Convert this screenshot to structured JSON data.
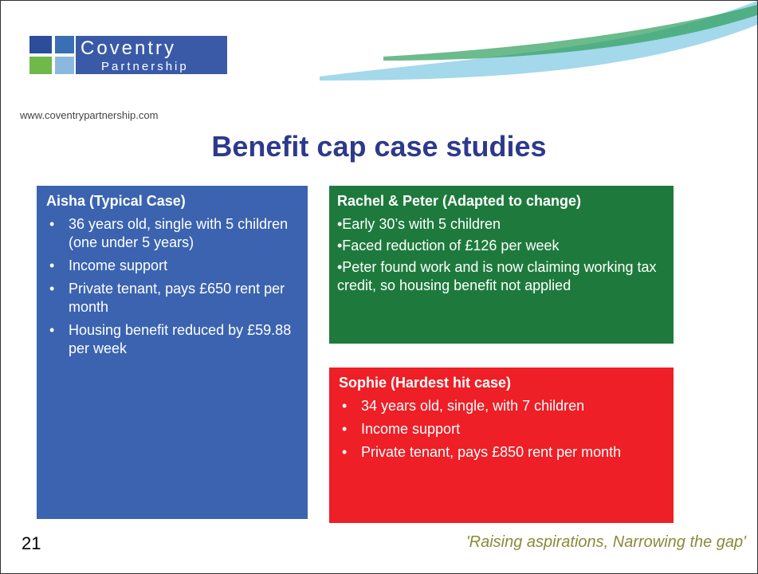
{
  "logo": {
    "name": "Coventry",
    "sub": "Partnership",
    "url": "www.coventrypartnership.com"
  },
  "title": "Benefit cap case studies",
  "boxes": [
    {
      "heading": "Aisha (Typical Case)",
      "items": [
        "36 years old, single with 5 children (one under 5 years)",
        "Income support",
        "Private tenant, pays £650 rent per month",
        "Housing benefit reduced by £59.88 per week"
      ]
    },
    {
      "heading": "Rachel & Peter (Adapted to change)",
      "items": [
        "•Early 30’s with 5 children",
        "•Faced reduction of £126 per week",
        "•Peter found work and is now claiming working tax credit, so housing benefit not applied"
      ]
    },
    {
      "heading": "Sophie (Hardest hit case)",
      "items": [
        "34 years old, single, with 7 children",
        "Income support",
        "Private tenant, pays £850 rent per month"
      ]
    }
  ],
  "footer": {
    "page": "21",
    "slogan": "'Raising aspirations, Narrowing the gap'"
  }
}
